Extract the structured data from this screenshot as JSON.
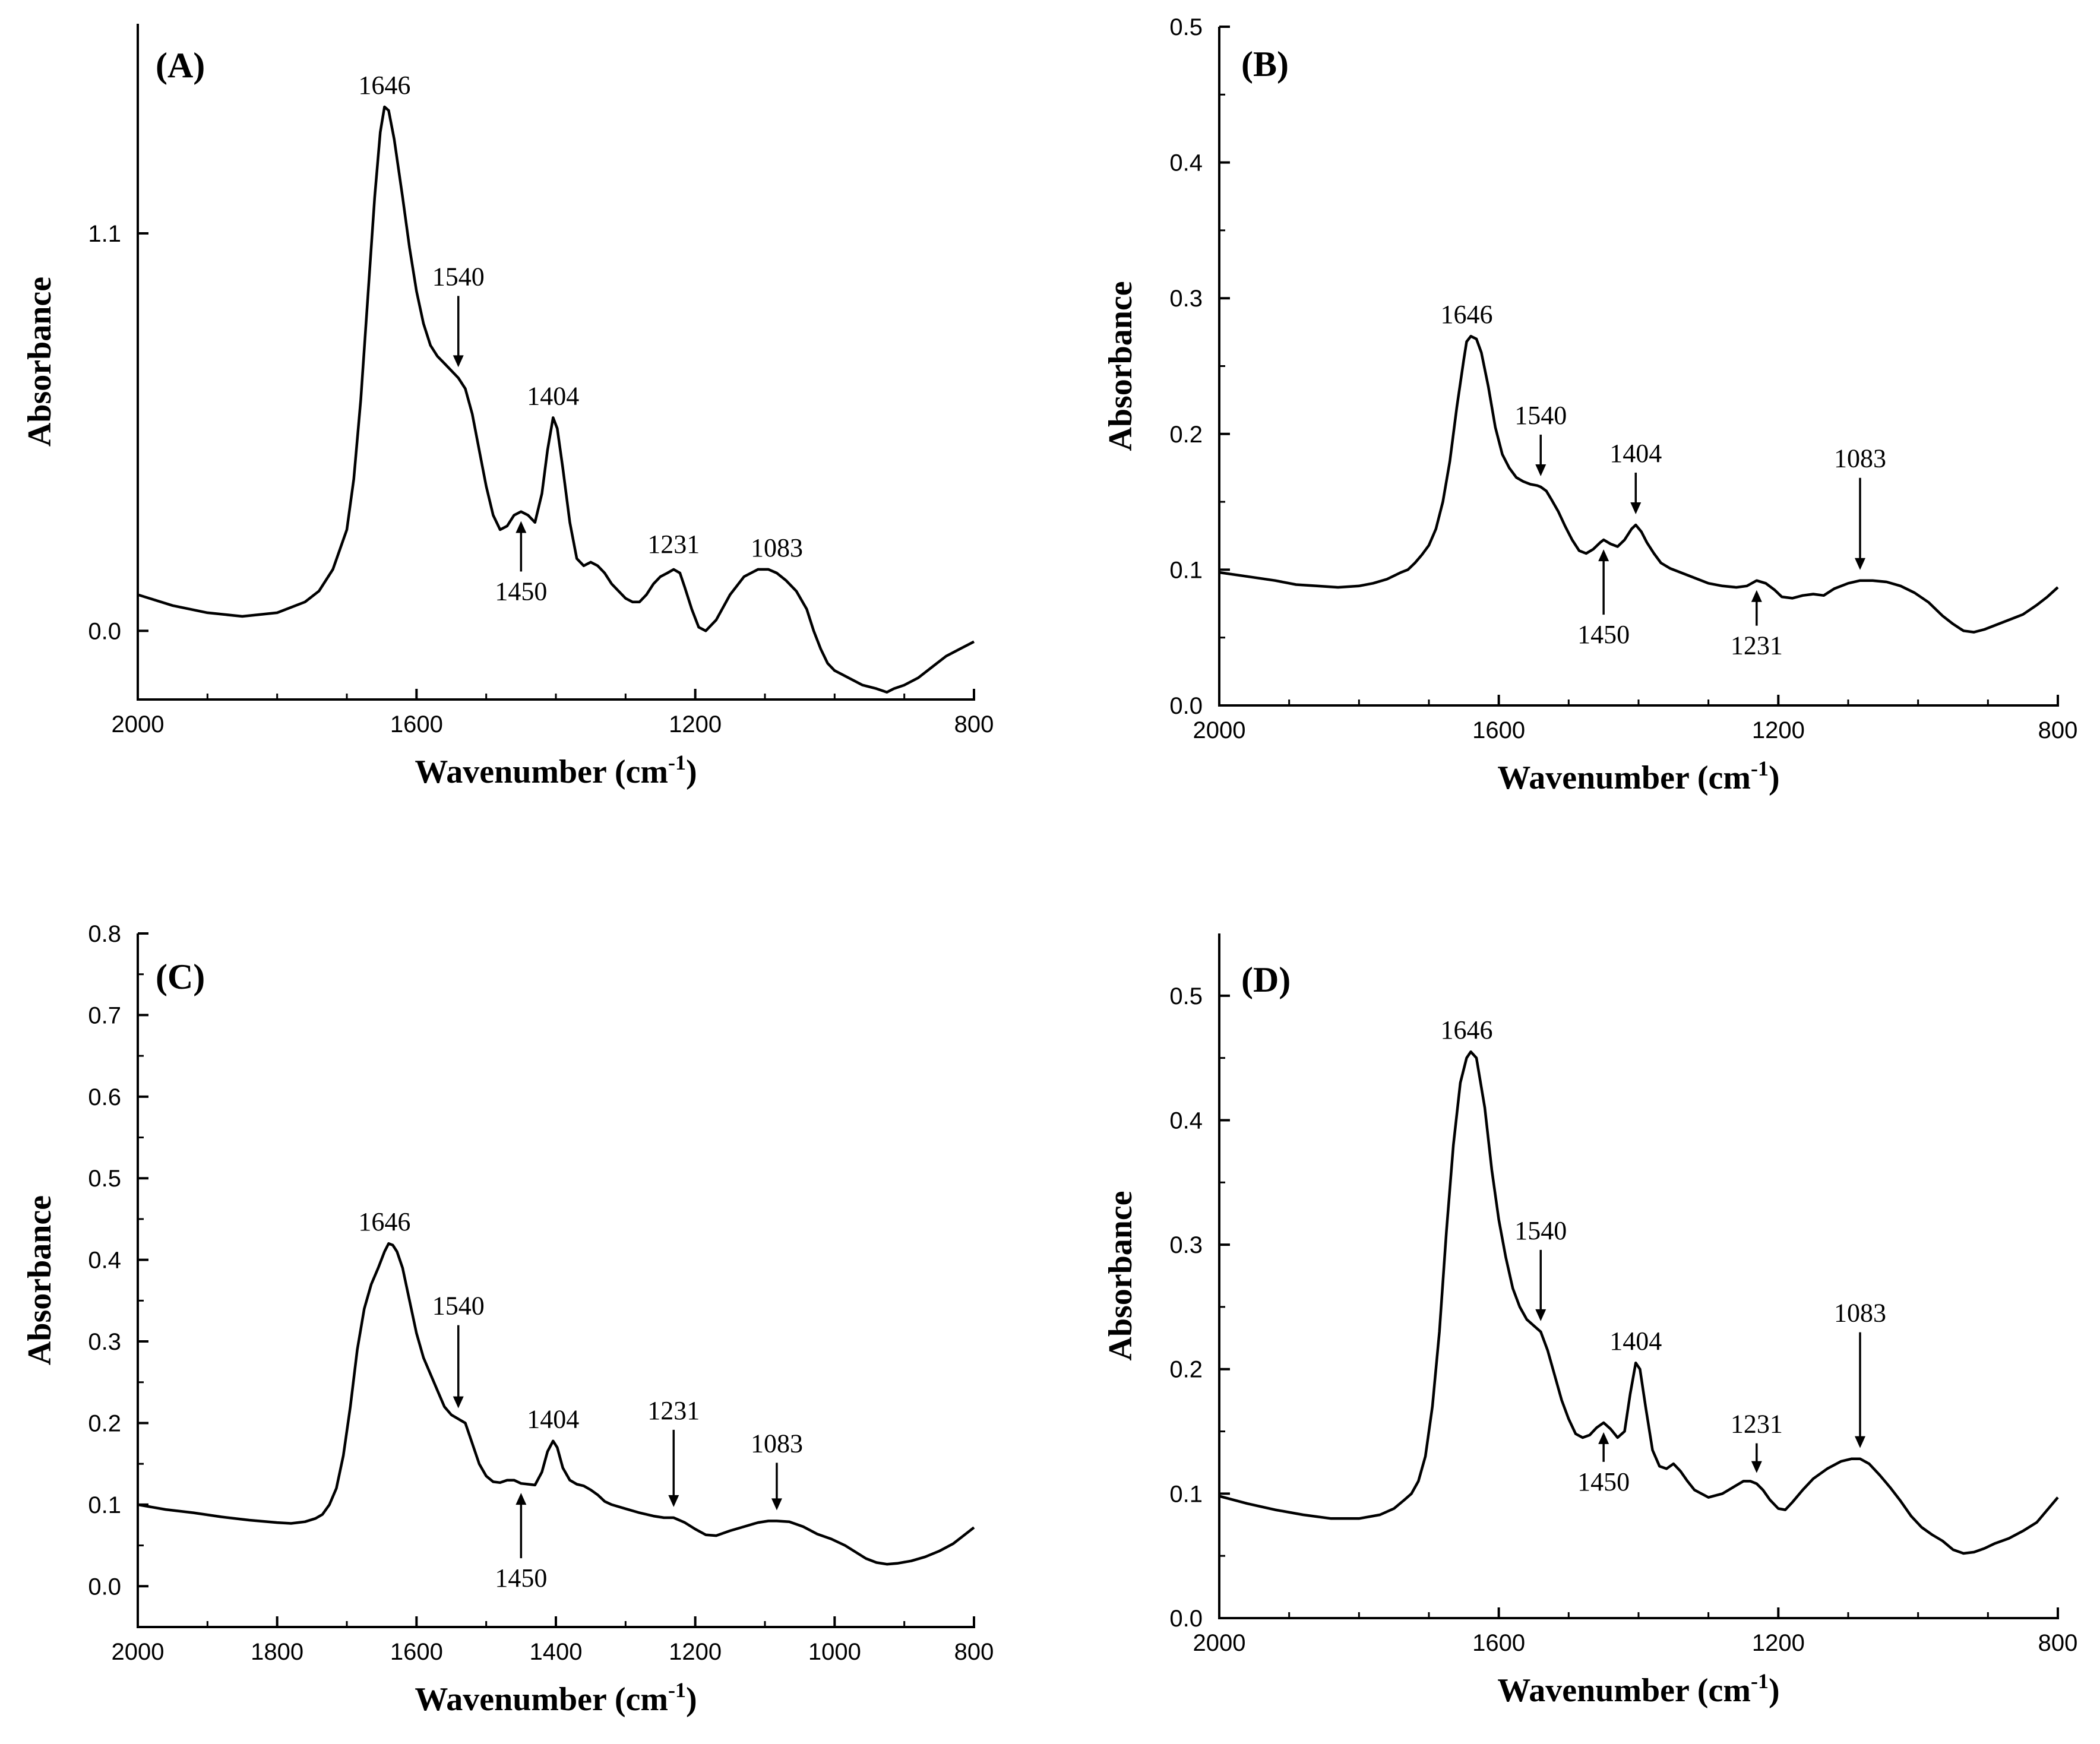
{
  "chart_data": [
    {
      "id": "A",
      "type": "line",
      "panel_label": "(A)",
      "xlabel": "Wavenumber (cm",
      "xlabel_sup": "-1",
      "xlabel_close": ")",
      "ylabel": "Absorbance",
      "xlim": [
        2000,
        800
      ],
      "ylim": [
        -0.19,
        1.68
      ],
      "x_ticks": [
        2000,
        1600,
        1200,
        800
      ],
      "x_tick_labels": [
        "2000",
        "1600",
        "1200",
        "800"
      ],
      "y_ticks": [
        0.0,
        1.1
      ],
      "y_tick_labels": [
        "0.0",
        "1.1"
      ],
      "series": [
        {
          "name": "A",
          "x": [
            2000,
            1950,
            1900,
            1850,
            1800,
            1760,
            1740,
            1720,
            1700,
            1690,
            1680,
            1670,
            1660,
            1652,
            1646,
            1640,
            1632,
            1620,
            1610,
            1600,
            1590,
            1580,
            1570,
            1560,
            1550,
            1540,
            1530,
            1520,
            1510,
            1500,
            1490,
            1480,
            1470,
            1460,
            1450,
            1440,
            1430,
            1420,
            1412,
            1404,
            1398,
            1390,
            1380,
            1370,
            1360,
            1350,
            1340,
            1330,
            1320,
            1310,
            1300,
            1290,
            1280,
            1270,
            1260,
            1250,
            1240,
            1231,
            1222,
            1215,
            1205,
            1195,
            1185,
            1170,
            1150,
            1130,
            1110,
            1095,
            1083,
            1070,
            1055,
            1040,
            1030,
            1020,
            1010,
            1000,
            990,
            980,
            960,
            940,
            925,
            915,
            900,
            880,
            860,
            840,
            820,
            800
          ],
          "y": [
            0.1,
            0.07,
            0.05,
            0.04,
            0.05,
            0.08,
            0.11,
            0.17,
            0.28,
            0.42,
            0.64,
            0.92,
            1.2,
            1.38,
            1.45,
            1.44,
            1.36,
            1.2,
            1.06,
            0.94,
            0.85,
            0.79,
            0.76,
            0.74,
            0.72,
            0.7,
            0.67,
            0.6,
            0.5,
            0.4,
            0.32,
            0.28,
            0.29,
            0.32,
            0.33,
            0.32,
            0.3,
            0.38,
            0.5,
            0.59,
            0.56,
            0.45,
            0.3,
            0.2,
            0.18,
            0.19,
            0.18,
            0.16,
            0.13,
            0.11,
            0.09,
            0.08,
            0.08,
            0.1,
            0.13,
            0.15,
            0.16,
            0.17,
            0.16,
            0.12,
            0.06,
            0.01,
            0.0,
            0.03,
            0.1,
            0.15,
            0.17,
            0.17,
            0.16,
            0.14,
            0.11,
            0.06,
            0.0,
            -0.05,
            -0.09,
            -0.11,
            -0.12,
            -0.13,
            -0.15,
            -0.16,
            -0.17,
            -0.16,
            -0.15,
            -0.13,
            -0.1,
            -0.07,
            -0.05,
            -0.03
          ]
        }
      ],
      "annotations": [
        {
          "text": "1646",
          "x": 1646,
          "arrow": "none",
          "at_y": 1.45
        },
        {
          "text": "1540",
          "x": 1540,
          "arrow": "down",
          "at_y": 0.7
        },
        {
          "text": "1404",
          "x": 1404,
          "arrow": "none",
          "at_y": 0.59
        },
        {
          "text": "1450",
          "x": 1450,
          "arrow": "up",
          "at_y": 0.33
        },
        {
          "text": "1231",
          "x": 1231,
          "arrow": "none",
          "at_y": 0.17
        },
        {
          "text": "1083",
          "x": 1083,
          "arrow": "none",
          "at_y": 0.16
        }
      ]
    },
    {
      "id": "B",
      "type": "line",
      "panel_label": "(B)",
      "xlabel": "Wavenumber (cm",
      "xlabel_sup": "-1",
      "xlabel_close": ")",
      "ylabel": "Absorbance",
      "xlim": [
        2000,
        800
      ],
      "ylim": [
        0.0,
        0.5
      ],
      "x_ticks": [
        2000,
        1600,
        1200,
        800
      ],
      "x_tick_labels": [
        "2000",
        "1600",
        "1200",
        "800"
      ],
      "y_ticks": [
        0.0,
        0.1,
        0.2,
        0.3,
        0.4,
        0.5
      ],
      "y_tick_labels": [
        "0.0",
        "0.1",
        "0.2",
        "0.3",
        "0.4",
        "0.5"
      ],
      "series": [
        {
          "name": "B",
          "x": [
            2000,
            1960,
            1920,
            1890,
            1860,
            1830,
            1800,
            1780,
            1760,
            1740,
            1730,
            1720,
            1710,
            1700,
            1690,
            1680,
            1670,
            1660,
            1650,
            1646,
            1640,
            1632,
            1625,
            1615,
            1605,
            1595,
            1585,
            1575,
            1565,
            1555,
            1545,
            1540,
            1532,
            1525,
            1515,
            1505,
            1495,
            1485,
            1475,
            1465,
            1455,
            1450,
            1440,
            1430,
            1420,
            1410,
            1404,
            1396,
            1388,
            1378,
            1368,
            1355,
            1340,
            1320,
            1300,
            1280,
            1260,
            1245,
            1231,
            1218,
            1205,
            1195,
            1180,
            1165,
            1150,
            1135,
            1120,
            1100,
            1083,
            1065,
            1045,
            1025,
            1005,
            985,
            965,
            950,
            935,
            920,
            905,
            890,
            870,
            850,
            830,
            815,
            800
          ],
          "y": [
            0.098,
            0.095,
            0.092,
            0.089,
            0.088,
            0.087,
            0.088,
            0.09,
            0.093,
            0.098,
            0.1,
            0.105,
            0.111,
            0.118,
            0.13,
            0.15,
            0.18,
            0.22,
            0.255,
            0.268,
            0.272,
            0.27,
            0.26,
            0.235,
            0.205,
            0.185,
            0.175,
            0.168,
            0.165,
            0.163,
            0.162,
            0.161,
            0.158,
            0.152,
            0.143,
            0.132,
            0.122,
            0.114,
            0.112,
            0.115,
            0.12,
            0.122,
            0.119,
            0.117,
            0.122,
            0.13,
            0.133,
            0.128,
            0.12,
            0.112,
            0.105,
            0.101,
            0.098,
            0.094,
            0.09,
            0.088,
            0.087,
            0.088,
            0.092,
            0.09,
            0.085,
            0.08,
            0.079,
            0.081,
            0.082,
            0.081,
            0.086,
            0.09,
            0.092,
            0.092,
            0.091,
            0.088,
            0.083,
            0.076,
            0.066,
            0.06,
            0.055,
            0.054,
            0.056,
            0.059,
            0.063,
            0.067,
            0.074,
            0.08,
            0.087
          ]
        }
      ],
      "annotations": [
        {
          "text": "1646",
          "x": 1646,
          "arrow": "none",
          "at_y": 0.272
        },
        {
          "text": "1540",
          "x": 1540,
          "arrow": "down",
          "at_y": 0.161
        },
        {
          "text": "1404",
          "x": 1404,
          "arrow": "down",
          "at_y": 0.133
        },
        {
          "text": "1083",
          "x": 1083,
          "arrow": "down",
          "at_y": 0.092
        },
        {
          "text": "1450",
          "x": 1450,
          "arrow": "up",
          "at_y": 0.122
        },
        {
          "text": "1231",
          "x": 1231,
          "arrow": "up",
          "at_y": 0.092
        }
      ]
    },
    {
      "id": "C",
      "type": "line",
      "panel_label": "(C)",
      "xlabel": "Wavenumber (cm",
      "xlabel_sup": "-1",
      "xlabel_close": ")",
      "ylabel": "Absorbance",
      "xlim": [
        2000,
        800
      ],
      "ylim": [
        -0.05,
        0.8
      ],
      "x_ticks": [
        2000,
        1800,
        1600,
        1400,
        1200,
        1000,
        800
      ],
      "x_tick_labels": [
        "2000",
        "1800",
        "1600",
        "1400",
        "1200",
        "1000",
        "800"
      ],
      "y_ticks": [
        0.0,
        0.1,
        0.2,
        0.3,
        0.4,
        0.5,
        0.6,
        0.7,
        0.8
      ],
      "y_tick_labels": [
        "0.0",
        "0.1",
        "0.2",
        "0.3",
        "0.4",
        "0.5",
        "0.6",
        "0.7",
        "0.8"
      ],
      "series": [
        {
          "name": "C",
          "x": [
            2000,
            1960,
            1920,
            1880,
            1840,
            1800,
            1780,
            1760,
            1745,
            1735,
            1725,
            1715,
            1705,
            1695,
            1685,
            1675,
            1665,
            1655,
            1646,
            1640,
            1634,
            1628,
            1620,
            1610,
            1600,
            1590,
            1580,
            1570,
            1560,
            1550,
            1540,
            1530,
            1520,
            1510,
            1500,
            1490,
            1480,
            1470,
            1460,
            1450,
            1440,
            1430,
            1420,
            1412,
            1404,
            1398,
            1390,
            1380,
            1370,
            1360,
            1350,
            1340,
            1330,
            1320,
            1300,
            1280,
            1260,
            1245,
            1231,
            1215,
            1200,
            1185,
            1170,
            1150,
            1130,
            1110,
            1095,
            1083,
            1065,
            1045,
            1025,
            1005,
            985,
            970,
            955,
            940,
            925,
            910,
            890,
            870,
            850,
            830,
            815,
            800
          ],
          "y": [
            0.1,
            0.094,
            0.09,
            0.085,
            0.081,
            0.078,
            0.077,
            0.079,
            0.083,
            0.088,
            0.1,
            0.12,
            0.16,
            0.22,
            0.29,
            0.34,
            0.37,
            0.39,
            0.41,
            0.42,
            0.418,
            0.41,
            0.39,
            0.35,
            0.31,
            0.28,
            0.26,
            0.24,
            0.22,
            0.21,
            0.205,
            0.2,
            0.175,
            0.15,
            0.135,
            0.128,
            0.127,
            0.13,
            0.13,
            0.126,
            0.125,
            0.124,
            0.14,
            0.165,
            0.178,
            0.17,
            0.145,
            0.13,
            0.125,
            0.123,
            0.118,
            0.112,
            0.104,
            0.1,
            0.095,
            0.09,
            0.086,
            0.084,
            0.084,
            0.078,
            0.07,
            0.063,
            0.062,
            0.068,
            0.073,
            0.078,
            0.08,
            0.08,
            0.079,
            0.073,
            0.064,
            0.058,
            0.05,
            0.042,
            0.034,
            0.029,
            0.027,
            0.028,
            0.031,
            0.036,
            0.043,
            0.052,
            0.062,
            0.072
          ]
        }
      ],
      "annotations": [
        {
          "text": "1646",
          "x": 1646,
          "arrow": "none",
          "at_y": 0.42
        },
        {
          "text": "1540",
          "x": 1540,
          "arrow": "down",
          "at_y": 0.205
        },
        {
          "text": "1404",
          "x": 1404,
          "arrow": "none",
          "at_y": 0.178
        },
        {
          "text": "1231",
          "x": 1231,
          "arrow": "down",
          "at_y": 0.084
        },
        {
          "text": "1083",
          "x": 1083,
          "arrow": "down",
          "at_y": 0.08
        },
        {
          "text": "1450",
          "x": 1450,
          "arrow": "up",
          "at_y": 0.126
        }
      ]
    },
    {
      "id": "D",
      "type": "line",
      "panel_label": "(D)",
      "xlabel": "Wavenumber (cm",
      "xlabel_sup": "-1",
      "xlabel_close": ")",
      "ylabel": "Absorbance",
      "xlim": [
        2000,
        800
      ],
      "ylim": [
        0.0,
        0.55
      ],
      "x_ticks": [
        2000,
        1600,
        1200,
        800
      ],
      "x_tick_labels": [
        "2000",
        "1600",
        "1200",
        "800"
      ],
      "y_ticks": [
        0.0,
        0.1,
        0.2,
        0.3,
        0.4,
        0.5
      ],
      "y_tick_labels": [
        "0.0",
        "0.1",
        "0.2",
        "0.3",
        "0.4",
        "0.5"
      ],
      "series": [
        {
          "name": "D",
          "x": [
            2000,
            1960,
            1920,
            1880,
            1840,
            1800,
            1770,
            1750,
            1735,
            1725,
            1715,
            1705,
            1695,
            1685,
            1675,
            1665,
            1655,
            1646,
            1640,
            1632,
            1620,
            1610,
            1600,
            1590,
            1580,
            1570,
            1560,
            1550,
            1540,
            1530,
            1520,
            1510,
            1500,
            1490,
            1480,
            1470,
            1460,
            1450,
            1440,
            1430,
            1420,
            1412,
            1404,
            1398,
            1390,
            1380,
            1370,
            1360,
            1350,
            1340,
            1330,
            1320,
            1300,
            1280,
            1265,
            1250,
            1240,
            1231,
            1222,
            1212,
            1200,
            1190,
            1180,
            1165,
            1150,
            1130,
            1110,
            1095,
            1083,
            1070,
            1055,
            1040,
            1025,
            1010,
            995,
            980,
            965,
            950,
            935,
            920,
            905,
            890,
            870,
            850,
            830,
            815,
            800
          ],
          "y": [
            0.098,
            0.092,
            0.087,
            0.083,
            0.08,
            0.08,
            0.083,
            0.088,
            0.095,
            0.1,
            0.11,
            0.13,
            0.17,
            0.23,
            0.31,
            0.38,
            0.43,
            0.45,
            0.455,
            0.45,
            0.41,
            0.36,
            0.32,
            0.29,
            0.265,
            0.25,
            0.24,
            0.235,
            0.23,
            0.215,
            0.195,
            0.175,
            0.16,
            0.148,
            0.145,
            0.147,
            0.153,
            0.157,
            0.152,
            0.145,
            0.15,
            0.18,
            0.205,
            0.2,
            0.17,
            0.135,
            0.122,
            0.12,
            0.124,
            0.118,
            0.11,
            0.103,
            0.097,
            0.1,
            0.105,
            0.11,
            0.11,
            0.108,
            0.103,
            0.095,
            0.088,
            0.087,
            0.093,
            0.103,
            0.112,
            0.12,
            0.126,
            0.128,
            0.128,
            0.124,
            0.115,
            0.105,
            0.094,
            0.082,
            0.073,
            0.067,
            0.062,
            0.055,
            0.052,
            0.053,
            0.056,
            0.06,
            0.064,
            0.07,
            0.077,
            0.087,
            0.097
          ]
        }
      ],
      "annotations": [
        {
          "text": "1646",
          "x": 1646,
          "arrow": "none",
          "at_y": 0.455
        },
        {
          "text": "1540",
          "x": 1540,
          "arrow": "down",
          "at_y": 0.23
        },
        {
          "text": "1404",
          "x": 1404,
          "arrow": "none",
          "at_y": 0.205
        },
        {
          "text": "1231",
          "x": 1231,
          "arrow": "down",
          "at_y": 0.108
        },
        {
          "text": "1083",
          "x": 1083,
          "arrow": "down",
          "at_y": 0.128
        },
        {
          "text": "1450",
          "x": 1450,
          "arrow": "up",
          "at_y": 0.157
        }
      ]
    }
  ]
}
